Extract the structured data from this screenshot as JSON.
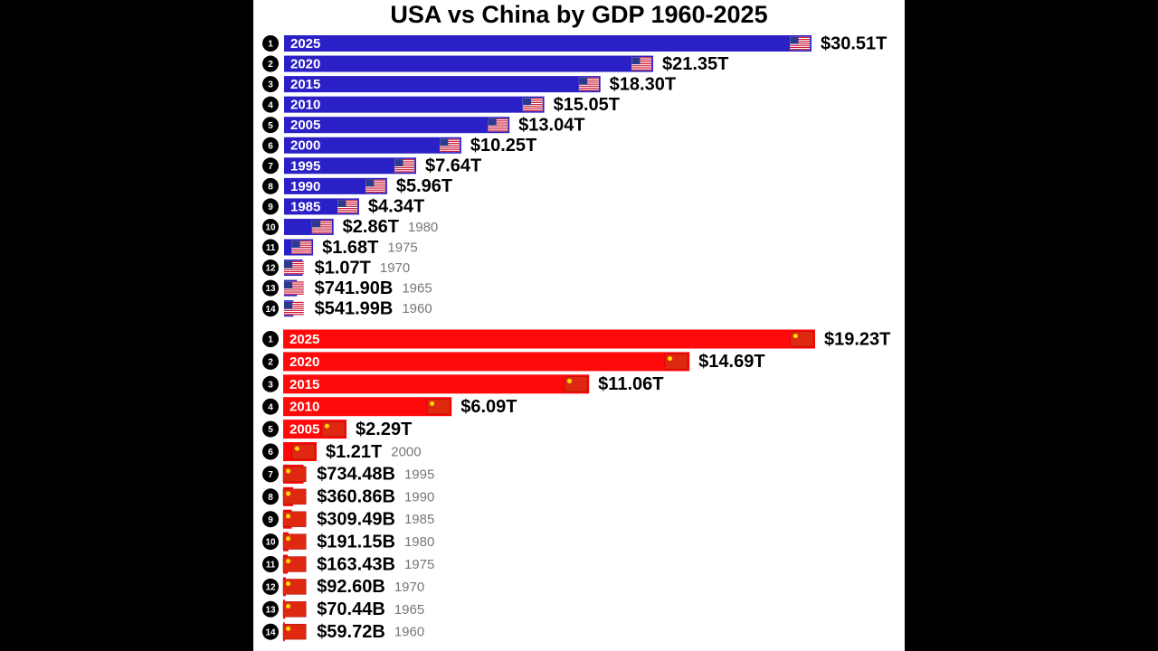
{
  "title": "USA vs China by GDP 1960-2025",
  "chart_data": [
    {
      "type": "bar",
      "orientation": "horizontal",
      "color": "#2b1fc6",
      "ranks": [
        1,
        2,
        3,
        4,
        5,
        6,
        7,
        8,
        9,
        10,
        11,
        12,
        13,
        14
      ],
      "categories": [
        "2025",
        "2020",
        "2015",
        "2010",
        "2005",
        "2000",
        "1995",
        "1990",
        "1985",
        "1980",
        "1975",
        "1970",
        "1965",
        "1960"
      ],
      "values": [
        30510,
        21350,
        18300,
        15050,
        13040,
        10250,
        7640,
        5960,
        4340,
        2860,
        1680,
        1070,
        741.9,
        541.99
      ],
      "value_labels": [
        "$30.51T",
        "$21.35T",
        "$18.30T",
        "$15.05T",
        "$13.04T",
        "$10.25T",
        "$7.64T",
        "$5.96T",
        "$4.34T",
        "$2.86T",
        "$1.68T",
        "$1.07T",
        "$741.90B",
        "$541.99B"
      ]
    },
    {
      "type": "bar",
      "orientation": "horizontal",
      "color": "#ff0a0a",
      "ranks": [
        1,
        2,
        3,
        4,
        5,
        6,
        7,
        8,
        9,
        10,
        11,
        12,
        13,
        14
      ],
      "categories": [
        "2025",
        "2020",
        "2015",
        "2010",
        "2005",
        "2000",
        "1995",
        "1990",
        "1985",
        "1980",
        "1975",
        "1970",
        "1965",
        "1960"
      ],
      "values": [
        19230,
        14690,
        11060,
        6090,
        2290,
        1210,
        734.48,
        360.86,
        309.49,
        191.15,
        163.43,
        92.6,
        70.44,
        59.72
      ],
      "value_labels": [
        "$19.23T",
        "$14.69T",
        "$11.06T",
        "$6.09T",
        "$2.29T",
        "$1.21T",
        "$734.48B",
        "$360.86B",
        "$309.49B",
        "$191.15B",
        "$163.43B",
        "$92.60B",
        "$70.44B",
        "$59.72B"
      ]
    }
  ]
}
